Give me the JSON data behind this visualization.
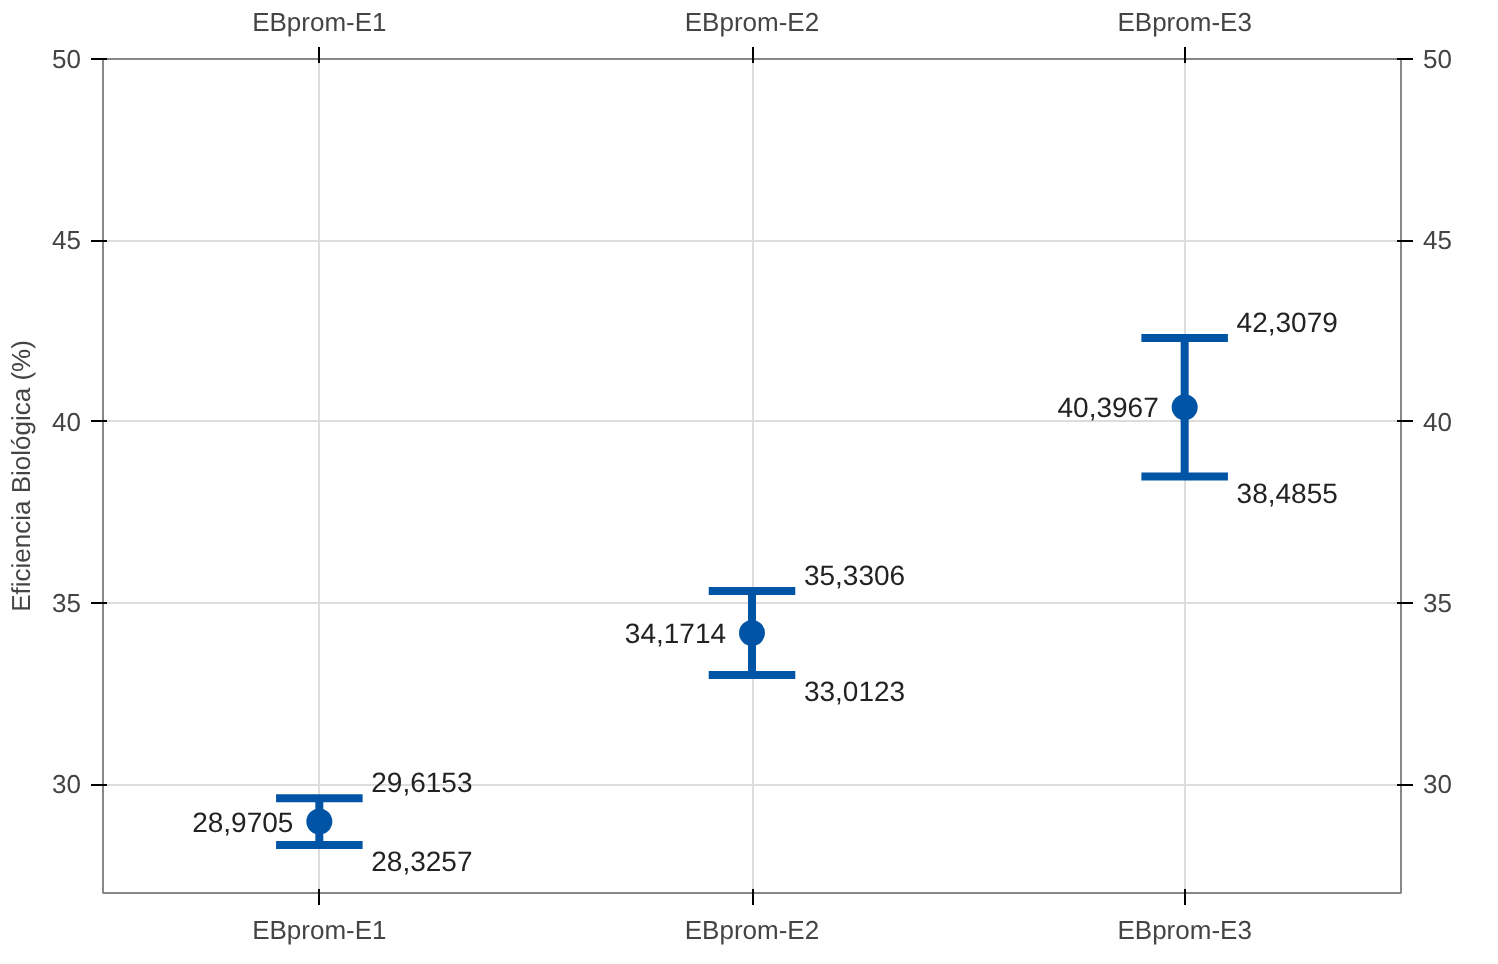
{
  "chart_data": {
    "type": "scatter",
    "ylabel": "Eficiencia Biológica (%)",
    "categories": [
      "EBprom-E1",
      "EBprom-E2",
      "EBprom-E3"
    ],
    "values": [
      28.9705,
      34.1714,
      40.3967
    ],
    "value_labels": [
      "28,9705",
      "34,1714",
      "40,3967"
    ],
    "errors": [
      [
        28.3257,
        29.6153
      ],
      [
        33.0123,
        35.3306
      ],
      [
        38.4855,
        42.3079
      ]
    ],
    "color": "#0054a6",
    "marker": "circle",
    "grid": true,
    "ylim": [
      27,
      50
    ],
    "yticks": [
      30,
      35,
      40,
      45,
      50
    ],
    "y2lim": [
      27,
      50
    ],
    "y2ticks": [
      30,
      35,
      40,
      45,
      50
    ],
    "annotations": [
      {
        "text": "29,6153",
        "x": "EBprom-E1",
        "y": 29.6153
      },
      {
        "text": "28,3257",
        "x": "EBprom-E1",
        "y": 28.3257
      },
      {
        "text": "35,3306",
        "x": "EBprom-E2",
        "y": 35.3306
      },
      {
        "text": "33,0123",
        "x": "EBprom-E2",
        "y": 33.0123
      },
      {
        "text": "42,3079",
        "x": "EBprom-E3",
        "y": 42.3079
      },
      {
        "text": "38,4855",
        "x": "EBprom-E3",
        "y": 38.4855
      }
    ]
  }
}
